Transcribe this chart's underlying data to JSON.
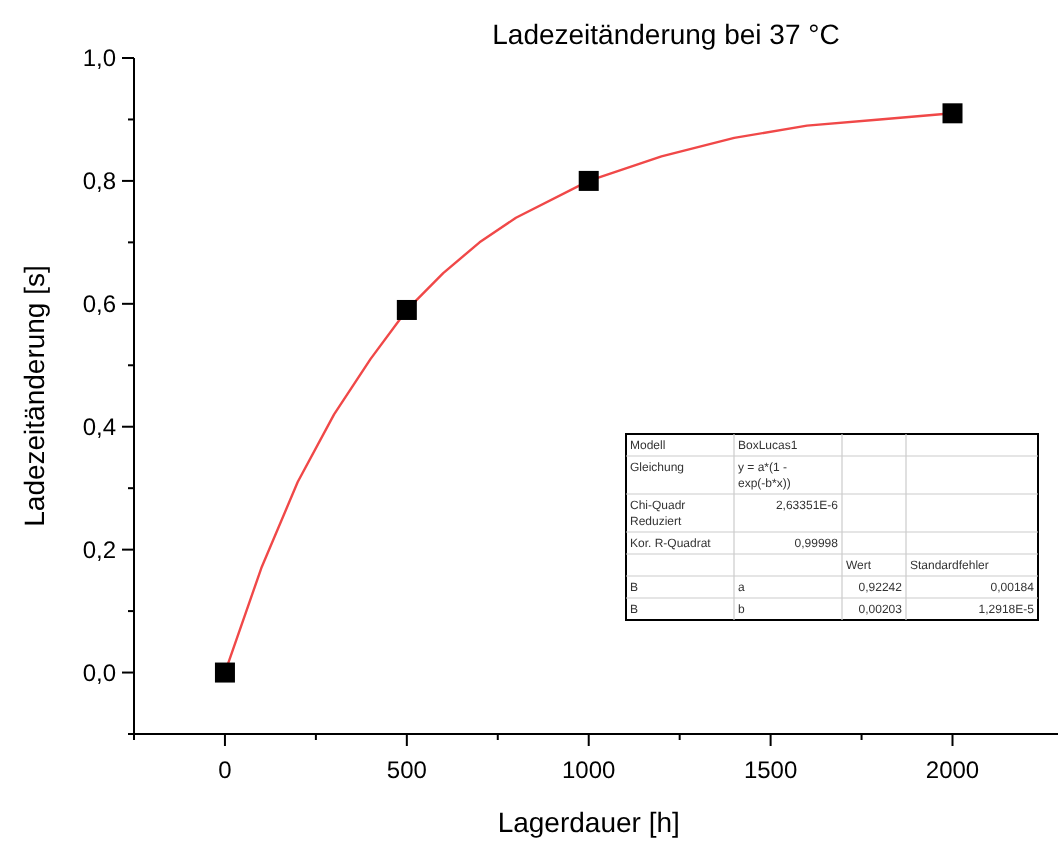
{
  "chart_data": {
    "type": "scatter",
    "title": "Ladezeitänderung bei 37 °C",
    "xlabel": "Lagerdauer [h]",
    "ylabel": "Ladezeitänderung [s]",
    "xlim": [
      -250,
      2290
    ],
    "xticks": [
      {
        "value": -250,
        "label": null
      },
      0,
      {
        "value": 250,
        "label": null
      },
      500,
      {
        "value": 750,
        "label": null
      },
      1000,
      {
        "value": 1250,
        "label": null
      },
      1500,
      {
        "value": 1750,
        "label": null
      },
      2000
    ],
    "ylim": [
      -0.1,
      1.0
    ],
    "yticks": [
      {
        "value": -0.1,
        "label": null
      },
      {
        "value": 0,
        "label": "0,0"
      },
      {
        "value": 0.1,
        "label": null
      },
      {
        "value": 0.2,
        "label": "0,2"
      },
      {
        "value": 0.3,
        "label": null
      },
      {
        "value": 0.4,
        "label": "0,4"
      },
      {
        "value": 0.5,
        "label": null
      },
      {
        "value": 0.6,
        "label": "0,6"
      },
      {
        "value": 0.7,
        "label": null
      },
      {
        "value": 0.8,
        "label": "0,8"
      },
      {
        "value": 0.9,
        "label": null
      },
      {
        "value": 1.0,
        "label": "1,0"
      }
    ],
    "grid": false,
    "series": [
      {
        "type": "line",
        "color": "#f04848",
        "x": [
          0,
          100,
          200,
          300,
          400,
          500,
          600,
          700,
          800,
          1000,
          1200,
          1400,
          1600,
          1800,
          2000
        ],
        "values": [
          0,
          0.17,
          0.31,
          0.42,
          0.51,
          0.59,
          0.65,
          0.7,
          0.74,
          0.8,
          0.84,
          0.87,
          0.89,
          0.9,
          0.91
        ]
      },
      {
        "type": "scatter",
        "marker": "square",
        "color": "#000000",
        "x": [
          0,
          500,
          1000,
          2000
        ],
        "values": [
          0,
          0.59,
          0.8,
          0.91
        ]
      }
    ],
    "annotations": [
      "Modell",
      "BoxLucas1",
      "Gleichung",
      "y = a*(1 - exp(-b*x))",
      "Chi-Quadr Reduziert",
      "2,63351E-6",
      "Kor. R-Quadrat",
      "0,99998",
      "Wert",
      "Standardfehler",
      "B",
      "a",
      "0,92242",
      "0,00184",
      "B",
      "b",
      "0,00203",
      "1,2918E-5"
    ]
  }
}
